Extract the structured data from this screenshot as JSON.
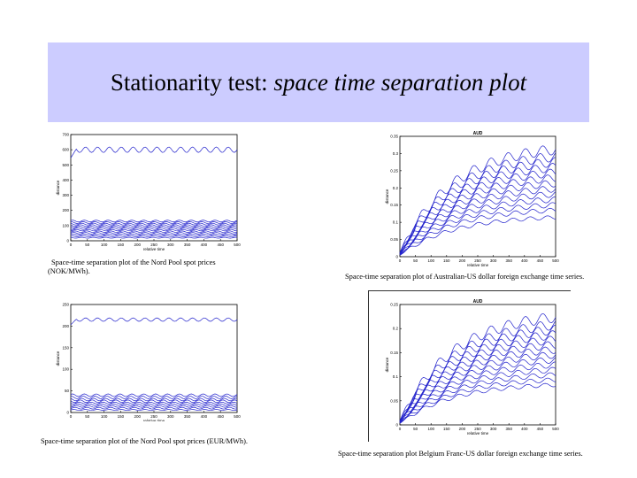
{
  "slide": {
    "title_plain": "Stationarity test: ",
    "title_italic": "space time separation plot"
  },
  "captions": {
    "tl": "Space-time separation plot of the Nord Pool spot prices",
    "tl2": "(NOK/MWh).",
    "tr": "Space-time separation plot of Australian-US dollar foreign exchange time series.",
    "bl": "Space-time separation plot of the Nord Pool spot prices (EUR/MWh).",
    "br": "Space-time separation plot Belgium Franc-US dollar foreign exchange time series."
  },
  "colors": {
    "banner": "#ccccff",
    "curve": "#2222cc"
  },
  "chart_data": [
    {
      "type": "line",
      "title": "",
      "xlabel": "relative time",
      "ylabel": "distance",
      "xlim": [
        0,
        500
      ],
      "ylim": [
        0,
        700
      ],
      "xticks": [
        "0",
        "50",
        "100",
        "150",
        "200",
        "250",
        "300",
        "350",
        "400",
        "450",
        "500"
      ],
      "yticks": [
        "0",
        "100",
        "200",
        "300",
        "400",
        "500",
        "600",
        "700"
      ],
      "series": [
        {
          "level": 600,
          "amp": 18
        },
        {
          "level": 130,
          "amp": 6
        },
        {
          "level": 120,
          "amp": 6
        },
        {
          "level": 110,
          "amp": 6
        },
        {
          "level": 100,
          "amp": 6
        },
        {
          "level": 90,
          "amp": 6
        },
        {
          "level": 80,
          "amp": 6
        },
        {
          "level": 70,
          "amp": 5
        },
        {
          "level": 60,
          "amp": 5
        },
        {
          "level": 50,
          "amp": 5
        },
        {
          "level": 40,
          "amp": 4
        },
        {
          "level": 30,
          "amp": 4
        },
        {
          "level": 20,
          "amp": 3
        }
      ]
    },
    {
      "type": "line",
      "title": "AUD",
      "xlabel": "relative time",
      "ylabel": "distance",
      "xlim": [
        0,
        500
      ],
      "ylim": [
        0,
        0.35
      ],
      "xticks": [
        "0",
        "50",
        "100",
        "150",
        "200",
        "250",
        "300",
        "350",
        "400",
        "450",
        "500"
      ],
      "yticks": [
        "0",
        "0.05",
        "0.1",
        "0.15",
        "0.2",
        "0.25",
        "0.3",
        "0.35"
      ],
      "series": [
        {
          "final": 0.3
        },
        {
          "final": 0.28
        },
        {
          "final": 0.265
        },
        {
          "final": 0.25
        },
        {
          "final": 0.235
        },
        {
          "final": 0.22
        },
        {
          "final": 0.205
        },
        {
          "final": 0.19
        },
        {
          "final": 0.175
        },
        {
          "final": 0.16
        },
        {
          "final": 0.145
        },
        {
          "final": 0.13
        },
        {
          "final": 0.11
        }
      ]
    },
    {
      "type": "line",
      "title": "",
      "xlabel": "relative time",
      "ylabel": "distance",
      "xlim": [
        0,
        500
      ],
      "ylim": [
        0,
        250
      ],
      "xticks": [
        "0",
        "50",
        "100",
        "150",
        "200",
        "250",
        "300",
        "350",
        "400",
        "450",
        "500"
      ],
      "yticks": [
        "0",
        "50",
        "100",
        "150",
        "200",
        "250"
      ],
      "series": [
        {
          "level": 215,
          "amp": 4
        },
        {
          "level": 40,
          "amp": 3
        },
        {
          "level": 35,
          "amp": 3
        },
        {
          "level": 30,
          "amp": 3
        },
        {
          "level": 26,
          "amp": 3
        },
        {
          "level": 22,
          "amp": 2
        },
        {
          "level": 18,
          "amp": 2
        },
        {
          "level": 14,
          "amp": 2
        },
        {
          "level": 10,
          "amp": 2
        },
        {
          "level": 6,
          "amp": 1
        }
      ]
    },
    {
      "type": "line",
      "title": "AUD",
      "xlabel": "relative time",
      "ylabel": "distance",
      "xlim": [
        0,
        500
      ],
      "ylim": [
        0,
        0.25
      ],
      "xticks": [
        "0",
        "50",
        "100",
        "150",
        "200",
        "250",
        "300",
        "350",
        "400",
        "450",
        "500"
      ],
      "yticks": [
        "0",
        "0.05",
        "0.1",
        "0.15",
        "0.2",
        "0.25"
      ],
      "series": [
        {
          "final": 0.215
        },
        {
          "final": 0.2
        },
        {
          "final": 0.19
        },
        {
          "final": 0.18
        },
        {
          "final": 0.17
        },
        {
          "final": 0.16
        },
        {
          "final": 0.15
        },
        {
          "final": 0.14
        },
        {
          "final": 0.13
        },
        {
          "final": 0.12
        },
        {
          "final": 0.11
        },
        {
          "final": 0.1
        },
        {
          "final": 0.09
        },
        {
          "final": 0.08
        }
      ]
    }
  ]
}
